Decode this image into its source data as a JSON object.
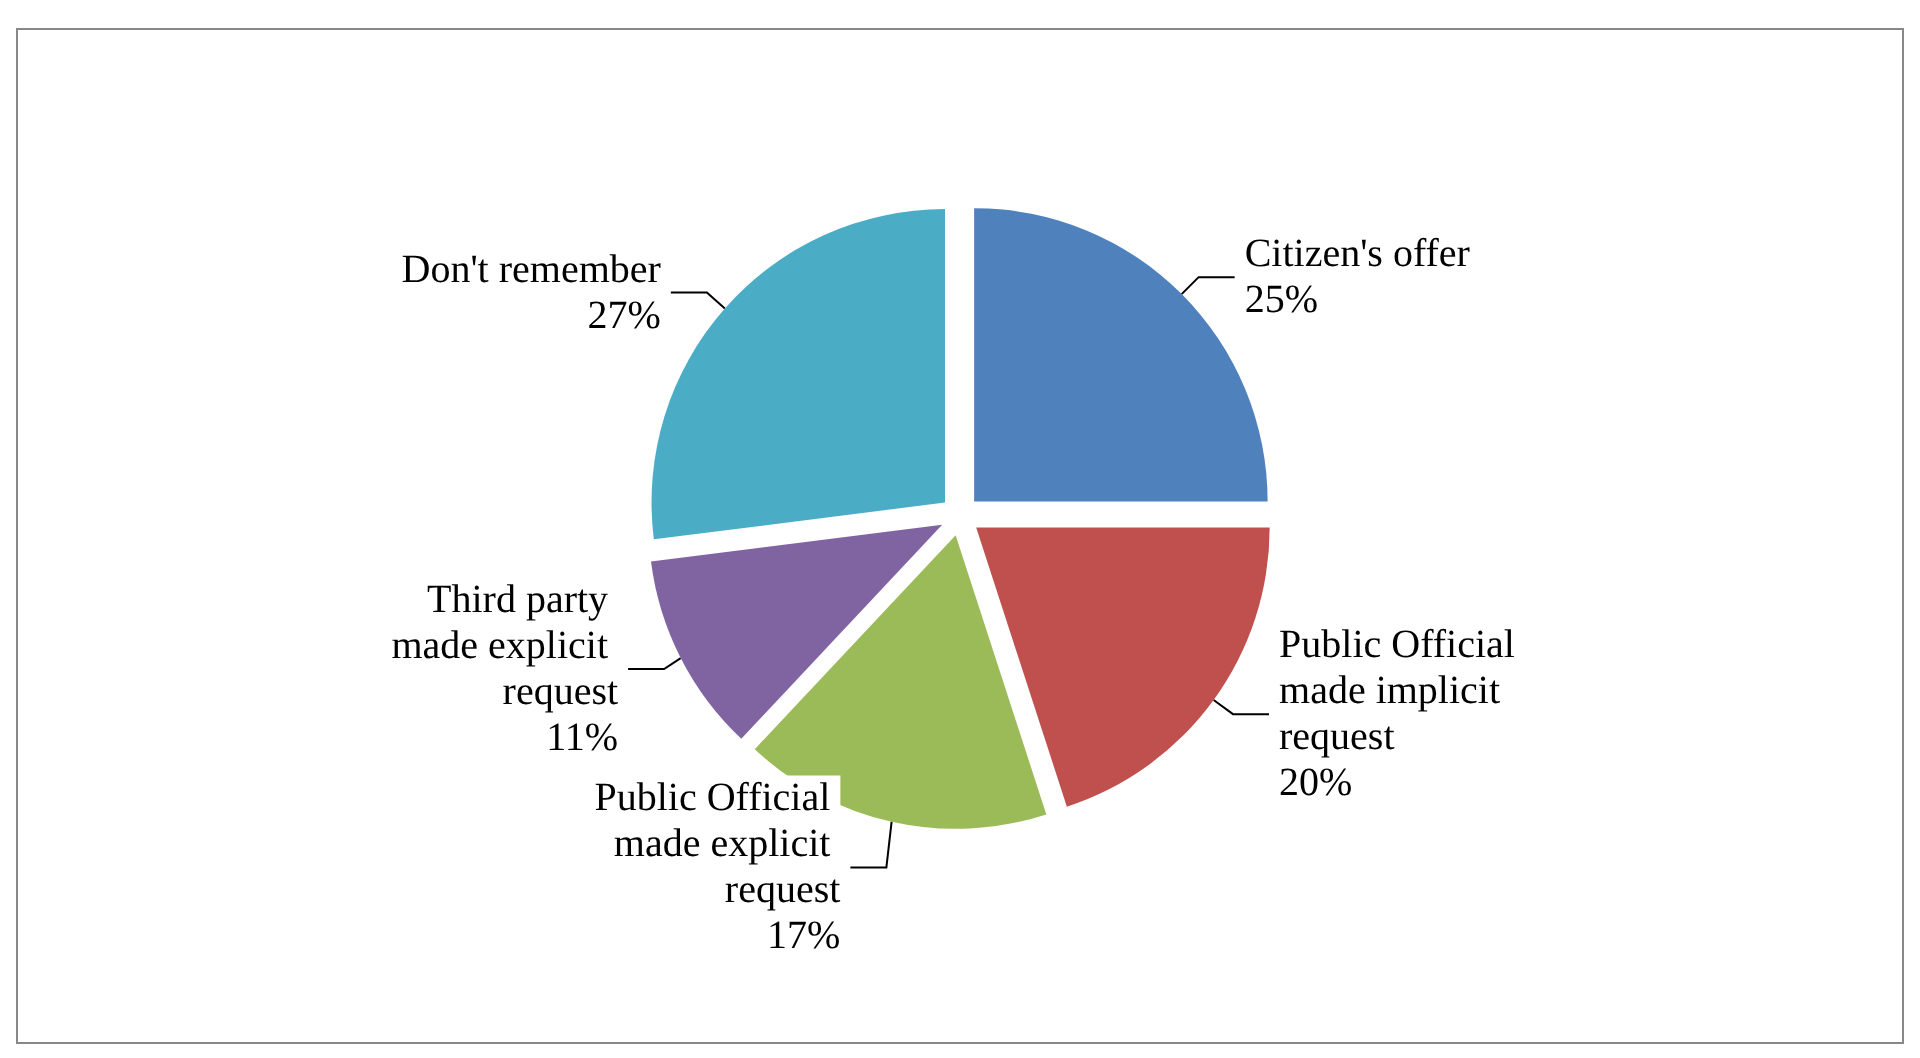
{
  "chart_data": {
    "type": "pie",
    "categories": [
      "Citizen's offer",
      "Public Official made implicit request",
      "Public Official made explicit request",
      "Third party made explicit request",
      "Don't remember"
    ],
    "values": [
      25,
      20,
      17,
      11,
      27
    ],
    "colors": [
      "#4f81bd",
      "#c0504d",
      "#9bbb59",
      "#8064a2",
      "#4bacc6"
    ],
    "value_labels": [
      "25%",
      "20%",
      "17%",
      "11%",
      "27%"
    ],
    "legend": false
  }
}
